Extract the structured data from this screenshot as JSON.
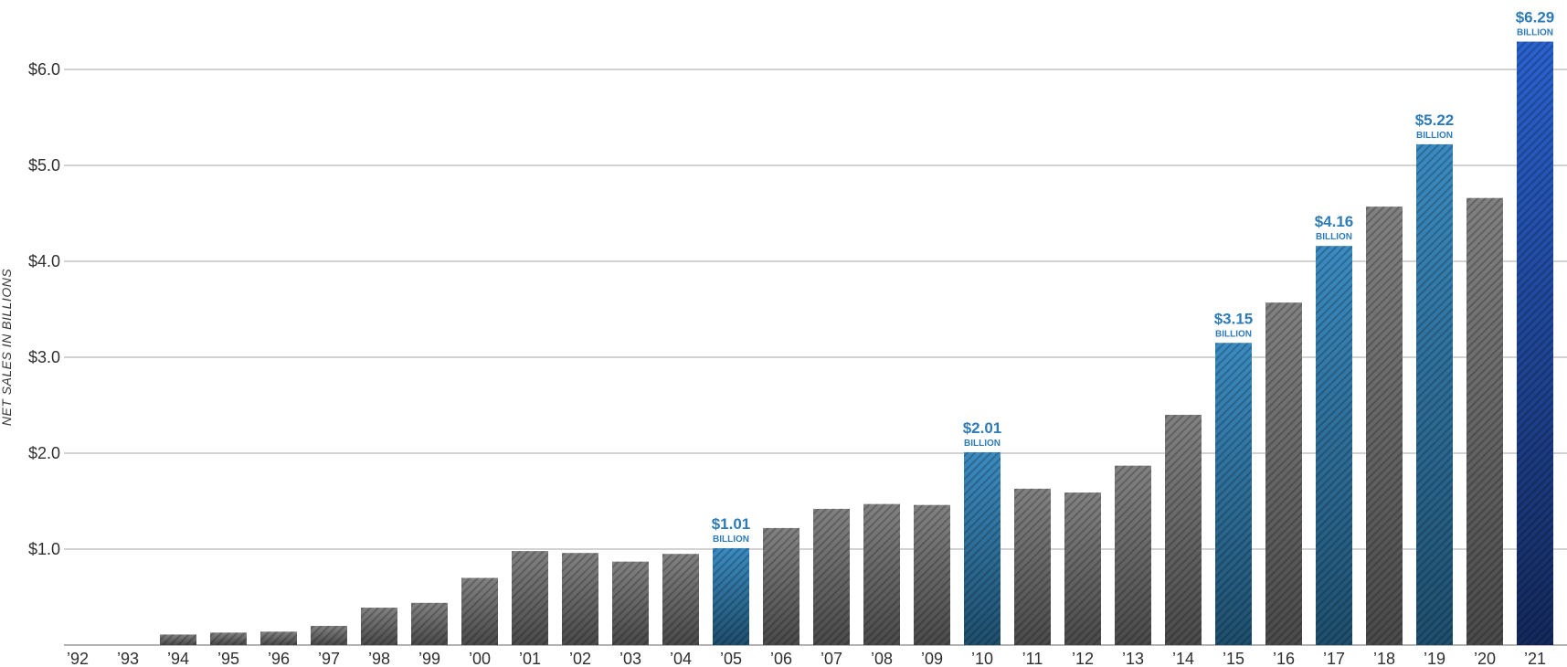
{
  "chart_data": {
    "type": "bar",
    "title": "",
    "xlabel": "",
    "ylabel": "NET SALES IN BILLIONS",
    "ylim": [
      0,
      6.6
    ],
    "yticks": [
      1.0,
      2.0,
      3.0,
      4.0,
      5.0,
      6.0
    ],
    "ytick_labels": [
      "$1.0",
      "$2.0",
      "$3.0",
      "$4.0",
      "$5.0",
      "$6.0"
    ],
    "grid": true,
    "categories": [
      "’92",
      "’93",
      "’94",
      "’95",
      "’96",
      "’97",
      "’98",
      "’99",
      "’00",
      "’01",
      "’02",
      "’03",
      "’04",
      "’05",
      "’06",
      "’07",
      "’08",
      "’09",
      "’10",
      "’11",
      "’12",
      "’13",
      "’14",
      "’15",
      "’16",
      "’17",
      "’18",
      "’19",
      "’20",
      "’21"
    ],
    "values": [
      0.0,
      0.0,
      0.11,
      0.13,
      0.14,
      0.2,
      0.39,
      0.44,
      0.7,
      0.98,
      0.96,
      0.87,
      0.95,
      1.01,
      1.22,
      1.42,
      1.47,
      1.46,
      2.01,
      1.63,
      1.59,
      1.87,
      2.4,
      3.15,
      3.57,
      4.16,
      4.57,
      5.22,
      4.66,
      6.29
    ],
    "callouts": [
      {
        "index": 13,
        "value_label": "$1.01",
        "unit": "BILLION"
      },
      {
        "index": 18,
        "value_label": "$2.01",
        "unit": "BILLION"
      },
      {
        "index": 23,
        "value_label": "$3.15",
        "unit": "BILLION"
      },
      {
        "index": 25,
        "value_label": "$4.16",
        "unit": "BILLION"
      },
      {
        "index": 27,
        "value_label": "$5.22",
        "unit": "BILLION"
      },
      {
        "index": 29,
        "value_label": "$6.29",
        "unit": "BILLION"
      }
    ],
    "colors": {
      "bar_gray_dark": "#4a4a4a",
      "bar_gray_light": "#828282",
      "bar_blue_dark": "#1f4f6e",
      "bar_blue_light": "#3b8cc2",
      "bar_final_dark": "#14295c",
      "bar_final_light": "#2a62cf",
      "gridline": "#c4c4c4",
      "callout_text": "#2f7bb8"
    }
  }
}
